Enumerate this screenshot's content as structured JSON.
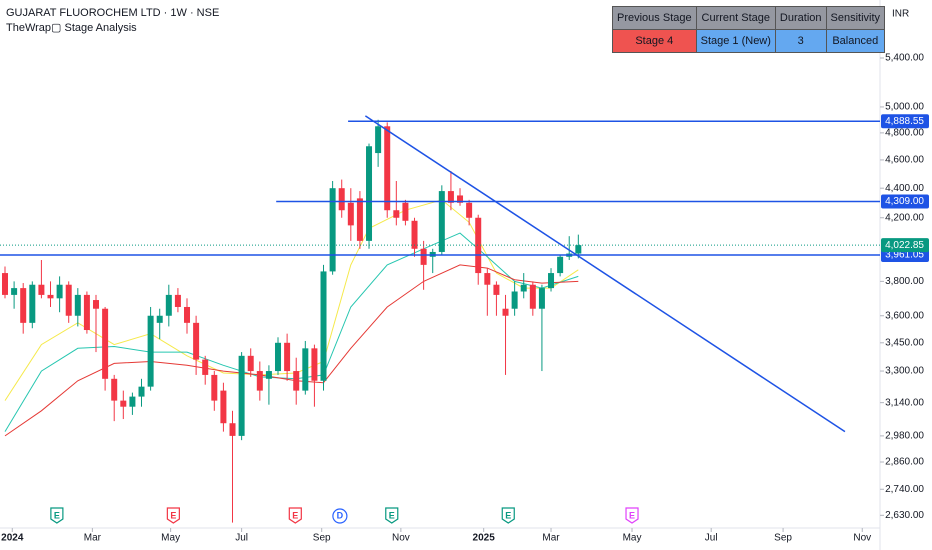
{
  "chart_data": {
    "type": "candlestick",
    "title": "GUJARAT FLUOROCHEM LTD · 1W · NSE",
    "subtitle": "TheWrap▢ Stage Analysis",
    "currency": "INR",
    "log_scale": true,
    "up_color": "#089981",
    "down_color": "#f23645",
    "xlim": [
      -0.55,
      96.15
    ],
    "ylim": [
      2578,
      5916
    ],
    "yticks": [
      {
        "value": 5400,
        "label": "5,400.00"
      },
      {
        "value": 5000,
        "label": "5,000.00"
      },
      {
        "value": 4800,
        "label": "4,800.00"
      },
      {
        "value": 4600,
        "label": "4,600.00"
      },
      {
        "value": 4400,
        "label": "4,400.00"
      },
      {
        "value": 4200,
        "label": "4,200.00"
      },
      {
        "value": 3800,
        "label": "3,800.00"
      },
      {
        "value": 3600,
        "label": "3,600.00"
      },
      {
        "value": 3450,
        "label": "3,450.00"
      },
      {
        "value": 3300,
        "label": "3,300.00"
      },
      {
        "value": 3140,
        "label": "3,140.00"
      },
      {
        "value": 2980,
        "label": "2,980.00"
      },
      {
        "value": 2860,
        "label": "2,860.00"
      },
      {
        "value": 2740,
        "label": "2,740.00"
      },
      {
        "value": 2630,
        "label": "2,630.00"
      }
    ],
    "xticks": [
      {
        "value": 0.8,
        "label": "2024"
      },
      {
        "value": 9.6,
        "label": "Mar"
      },
      {
        "value": 18.2,
        "label": "May"
      },
      {
        "value": 26,
        "label": "Jul"
      },
      {
        "value": 34.8,
        "label": "Sep"
      },
      {
        "value": 43.5,
        "label": "Nov"
      },
      {
        "value": 52.6,
        "label": "2025"
      },
      {
        "value": 60,
        "label": "Mar"
      },
      {
        "value": 68.9,
        "label": "May"
      },
      {
        "value": 77.6,
        "label": "Jul"
      },
      {
        "value": 85.5,
        "label": "Sep"
      },
      {
        "value": 94.2,
        "label": "Nov"
      }
    ],
    "open": [
      3850,
      3720,
      3760,
      3560,
      3780,
      3720,
      3700,
      3780,
      3600,
      3720,
      3690,
      3640,
      3260,
      3150,
      3120,
      3170,
      3220,
      3560,
      3600,
      3720,
      3650,
      3560,
      3360,
      3280,
      3200,
      3040,
      2980,
      3380,
      3300,
      3260,
      3300,
      3450,
      3300,
      3200,
      3420,
      3250,
      3860,
      4400,
      4300,
      4330,
      4050,
      4650,
      4850,
      4250,
      4300,
      4180,
      4000,
      3950,
      3980,
      4380,
      4350,
      4300,
      4200,
      3850,
      3780,
      3640,
      3640,
      3740,
      3780,
      3640,
      3760,
      3850,
      3950,
      3970
    ],
    "high": [
      3890,
      3800,
      3790,
      3800,
      3930,
      3800,
      3830,
      3800,
      3760,
      3740,
      3720,
      3650,
      3280,
      3200,
      3190,
      3260,
      3650,
      3640,
      3780,
      3760,
      3700,
      3600,
      3380,
      3300,
      3240,
      3100,
      3400,
      3420,
      3350,
      3330,
      3480,
      3500,
      3370,
      3460,
      3440,
      3900,
      4450,
      4460,
      4400,
      4380,
      4720,
      4900,
      4880,
      4450,
      4320,
      4200,
      4050,
      4000,
      4420,
      4520,
      4400,
      4320,
      4220,
      3880,
      3800,
      3720,
      3800,
      3850,
      3800,
      3780,
      3880,
      3960,
      4080,
      4090
    ],
    "low": [
      3700,
      3640,
      3500,
      3530,
      3700,
      3650,
      3620,
      3560,
      3540,
      3500,
      3400,
      3200,
      3050,
      3060,
      3080,
      3120,
      3200,
      3470,
      3540,
      3620,
      3500,
      3280,
      3230,
      3100,
      3000,
      2600,
      2960,
      3270,
      3150,
      3130,
      3280,
      3250,
      3130,
      3180,
      3120,
      3200,
      3840,
      4200,
      4050,
      4000,
      4000,
      4550,
      4200,
      4150,
      4150,
      3950,
      3750,
      3850,
      3960,
      4250,
      4280,
      4150,
      3780,
      3600,
      3600,
      3280,
      3600,
      3700,
      3600,
      3300,
      3740,
      3830,
      3930,
      3940
    ],
    "close": [
      3720,
      3760,
      3560,
      3780,
      3720,
      3700,
      3780,
      3600,
      3720,
      3520,
      3640,
      3260,
      3150,
      3120,
      3170,
      3220,
      3600,
      3600,
      3720,
      3650,
      3560,
      3360,
      3280,
      3150,
      3040,
      2980,
      3380,
      3300,
      3200,
      3300,
      3450,
      3300,
      3200,
      3420,
      3250,
      3860,
      4400,
      4250,
      4150,
      4050,
      4700,
      4850,
      4250,
      4200,
      4180,
      4000,
      3900,
      3980,
      4380,
      4300,
      4300,
      4200,
      3850,
      3780,
      3720,
      3600,
      3740,
      3780,
      3640,
      3760,
      3850,
      3950,
      3970,
      4022.85
    ],
    "moving_averages": [
      {
        "color": "#f5e94a",
        "x": [
          0,
          4,
          8,
          12,
          16,
          20,
          24,
          28,
          32,
          35,
          38,
          40,
          44,
          48,
          51,
          54,
          57,
          60,
          63
        ],
        "values": [
          3150,
          3440,
          3560,
          3440,
          3500,
          3380,
          3290,
          3280,
          3290,
          3350,
          3900,
          4130,
          4250,
          4320,
          4170,
          3850,
          3760,
          3760,
          3870
        ]
      },
      {
        "color": "#26c6b0",
        "x": [
          0,
          4,
          8,
          12,
          16,
          20,
          24,
          28,
          32,
          35,
          38,
          42,
          46,
          50,
          53,
          56,
          59,
          63
        ],
        "values": [
          3000,
          3300,
          3420,
          3430,
          3400,
          3400,
          3330,
          3270,
          3260,
          3280,
          3650,
          3900,
          4000,
          4100,
          3950,
          3800,
          3760,
          3830
        ]
      },
      {
        "color": "#e53935",
        "x": [
          0,
          4,
          8,
          12,
          16,
          20,
          24,
          28,
          32,
          35,
          38,
          42,
          46,
          50,
          53,
          56,
          59,
          63
        ],
        "values": [
          2980,
          3100,
          3250,
          3340,
          3350,
          3330,
          3300,
          3280,
          3250,
          3240,
          3420,
          3650,
          3800,
          3900,
          3880,
          3810,
          3790,
          3800
        ]
      }
    ],
    "line_color": "#1e53e5",
    "price_lines": [
      {
        "value": 4888.55,
        "label": "4,888.55",
        "start": 37.7
      },
      {
        "value": 4309,
        "label": "4,309.00",
        "start": 29.8
      },
      {
        "value": 3961.05,
        "label": "3,961.05",
        "start": -0.55
      }
    ],
    "last_price": {
      "value": 4022.85,
      "label": "4,022.85"
    },
    "trendline": {
      "x": [
        39.6,
        92.3
      ],
      "values": [
        4930,
        3000
      ]
    },
    "events": [
      {
        "x": 5.7,
        "label": "E",
        "color": "#089981"
      },
      {
        "x": 18.5,
        "label": "E",
        "color": "#f23645"
      },
      {
        "x": 31.9,
        "label": "E",
        "color": "#f23645"
      },
      {
        "x": 36.8,
        "label": "D",
        "color": "#2962ff"
      },
      {
        "x": 42.5,
        "label": "E",
        "color": "#089981"
      },
      {
        "x": 55.3,
        "label": "E",
        "color": "#089981"
      },
      {
        "x": 68.9,
        "label": "E",
        "color": "#e040fb"
      }
    ],
    "table": {
      "header": [
        "Previous Stage",
        "Current Stage",
        "Duration",
        "Sensitivity"
      ],
      "row": [
        "Stage 4",
        "Stage 1 (New)",
        "3",
        "Balanced"
      ]
    }
  }
}
